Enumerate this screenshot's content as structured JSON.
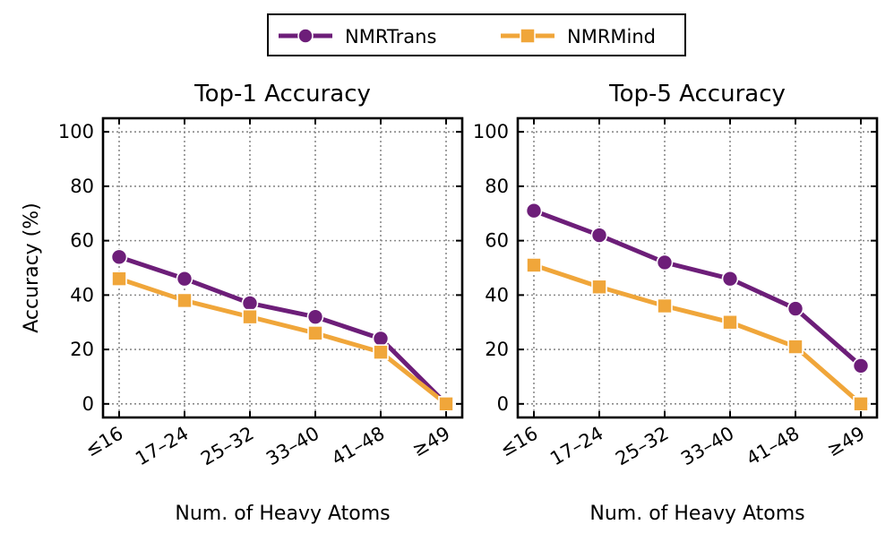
{
  "legend": [
    {
      "name": "NMRTrans",
      "color": "#6d1e79",
      "marker": "circle"
    },
    {
      "name": "NMRMind",
      "color": "#f0a63a",
      "marker": "square"
    }
  ],
  "chart_data": [
    {
      "type": "line",
      "title": "Top-1 Accuracy",
      "xlabel": "Num. of Heavy Atoms",
      "ylabel": "Accuracy (%)",
      "categories": [
        "≤16",
        "17–24",
        "25–32",
        "33–40",
        "41–48",
        "≥49"
      ],
      "ylim": [
        -5,
        105
      ],
      "yticks": [
        0,
        20,
        40,
        60,
        80,
        100
      ],
      "grid": true,
      "series": [
        {
          "name": "NMRTrans",
          "values": [
            54,
            46,
            37,
            32,
            24,
            0
          ]
        },
        {
          "name": "NMRMind",
          "values": [
            46,
            38,
            32,
            26,
            19,
            0
          ]
        }
      ]
    },
    {
      "type": "line",
      "title": "Top-5 Accuracy",
      "xlabel": "Num. of Heavy Atoms",
      "ylabel": "",
      "categories": [
        "≤16",
        "17–24",
        "25–32",
        "33–40",
        "41–48",
        "≥49"
      ],
      "ylim": [
        -5,
        105
      ],
      "yticks": [
        0,
        20,
        40,
        60,
        80,
        100
      ],
      "grid": true,
      "series": [
        {
          "name": "NMRTrans",
          "values": [
            71,
            62,
            52,
            46,
            35,
            14
          ]
        },
        {
          "name": "NMRMind",
          "values": [
            51,
            43,
            36,
            30,
            21,
            0
          ]
        }
      ]
    }
  ]
}
